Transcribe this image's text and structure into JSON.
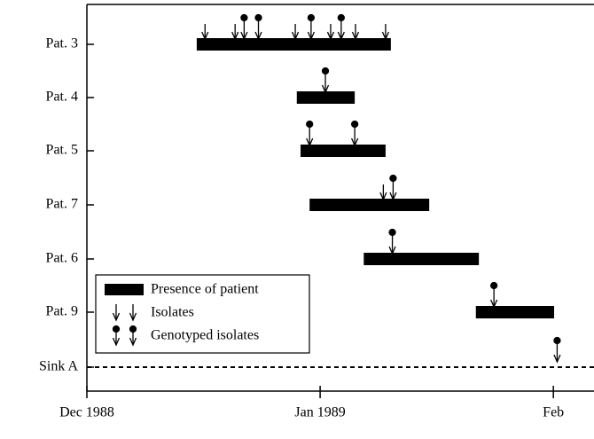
{
  "chart_data": {
    "type": "timeline",
    "legend": {
      "presence": "Presence of patient",
      "isolates": "Isolates",
      "genotyped": "Genotyped isolates"
    },
    "xlim": [
      0,
      67.4
    ],
    "xticks": [
      {
        "value": 0,
        "label": "Dec 1988"
      },
      {
        "value": 31,
        "label": "Jan 1989"
      },
      {
        "value": 62,
        "label": "Feb"
      }
    ],
    "rows": [
      {
        "name": "Pat. 3",
        "presence": [
          14.6,
          40.4
        ],
        "isolates": [
          15.7,
          19.7,
          27.7,
          32.4,
          35.7,
          39.7
        ],
        "genotyped": [
          20.9,
          22.8,
          29.8,
          33.8
        ]
      },
      {
        "name": "Pat. 4",
        "presence": [
          27.9,
          35.6
        ],
        "isolates": [],
        "genotyped": [
          31.7
        ]
      },
      {
        "name": "Pat. 5",
        "presence": [
          28.4,
          39.7
        ],
        "isolates": [],
        "genotyped": [
          29.6,
          35.6
        ]
      },
      {
        "name": "Pat. 7",
        "presence": [
          29.6,
          45.5
        ],
        "isolates": [
          39.4
        ],
        "genotyped": [
          40.7
        ]
      },
      {
        "name": "Pat. 6",
        "presence": [
          36.8,
          52.1
        ],
        "isolates": [],
        "genotyped": [
          40.6
        ]
      },
      {
        "name": "Pat. 9",
        "presence": [
          51.7,
          62.1
        ],
        "isolates": [],
        "genotyped": [
          54.1
        ]
      },
      {
        "name": "Sink A",
        "line_style": "dashed",
        "isolates": [],
        "genotyped": [
          62.5
        ]
      }
    ]
  }
}
